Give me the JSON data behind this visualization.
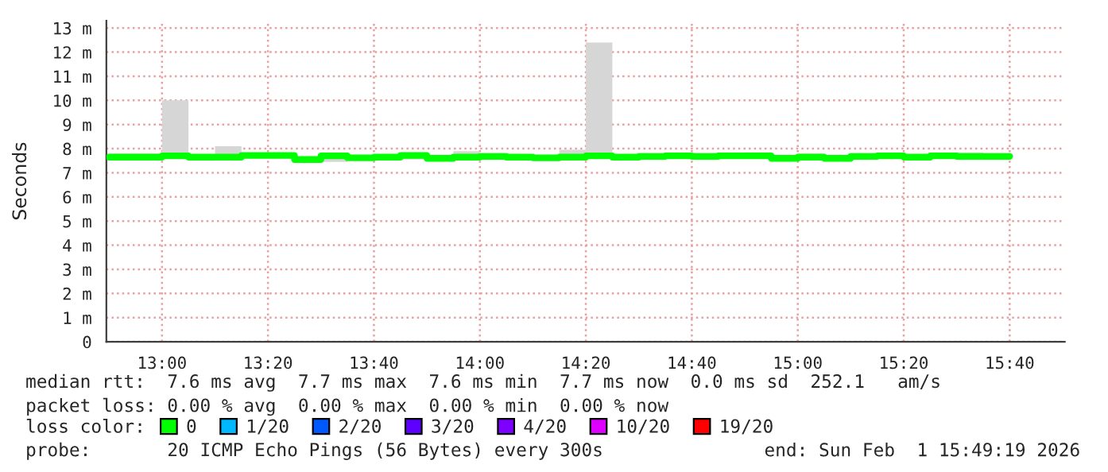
{
  "chart_data": {
    "type": "step",
    "ylabel": "Seconds",
    "x": [
      12.8333,
      12.9167,
      13,
      13.0833,
      13.1667,
      13.25,
      13.3333,
      13.4167,
      13.5,
      13.5833,
      13.6667,
      13.75,
      13.8333,
      13.9167,
      14,
      14.0833,
      14.1667,
      14.25,
      14.3333,
      14.4167,
      14.5,
      14.5833,
      14.6667,
      14.75,
      14.8333,
      14.9167,
      15,
      15.0833,
      15.1667,
      15.25,
      15.3333,
      15.4167,
      15.5,
      15.5833,
      15.6667
    ],
    "series": [
      {
        "name": "0",
        "color": "#00ff00",
        "values": [
          7.65,
          7.65,
          7.7,
          7.65,
          7.65,
          7.72,
          7.72,
          7.55,
          7.7,
          7.62,
          7.65,
          7.72,
          7.6,
          7.65,
          7.68,
          7.65,
          7.62,
          7.65,
          7.7,
          7.65,
          7.68,
          7.7,
          7.68,
          7.7,
          7.7,
          7.6,
          7.65,
          7.6,
          7.68,
          7.7,
          7.65,
          7.7,
          7.68,
          7.68,
          7.68
        ],
        "lower": [
          7.6,
          7.6,
          7.6,
          7.5,
          7.6,
          7.6,
          7.6,
          7.5,
          7.45,
          7.55,
          7.55,
          7.55,
          7.5,
          7.55,
          7.6,
          7.55,
          7.5,
          7.6,
          7.6,
          7.6,
          7.65,
          7.6,
          7.6,
          7.65,
          7.6,
          7.55,
          7.55,
          7.55,
          7.6,
          7.65,
          7.55,
          7.7,
          7.6,
          7.6,
          7.6
        ],
        "upper": [
          7.8,
          7.8,
          10.0,
          7.7,
          8.1,
          7.8,
          7.75,
          7.6,
          7.75,
          7.7,
          7.75,
          7.85,
          7.7,
          7.9,
          7.75,
          7.7,
          7.7,
          7.95,
          12.4,
          7.7,
          7.7,
          7.75,
          7.75,
          7.75,
          7.85,
          7.7,
          7.8,
          7.7,
          7.7,
          7.75,
          7.75,
          7.75,
          7.85,
          7.75,
          7.75
        ]
      },
      {
        "name": "1/20",
        "color": "#00b8ff",
        "values": [
          null,
          null,
          null,
          null,
          null,
          null,
          null,
          null,
          null,
          null,
          null,
          null,
          null,
          null,
          null,
          null,
          null,
          null,
          null,
          null,
          null,
          null,
          null,
          null,
          null,
          null,
          null,
          null,
          null,
          null,
          null,
          null,
          null,
          null,
          null
        ]
      },
      {
        "name": "2/20",
        "color": "#0059ff",
        "values": [
          null,
          null,
          null,
          null,
          null,
          null,
          null,
          null,
          null,
          null,
          null,
          null,
          null,
          null,
          null,
          null,
          null,
          null,
          null,
          null,
          null,
          null,
          null,
          null,
          null,
          null,
          null,
          null,
          null,
          null,
          null,
          null,
          null,
          null,
          null
        ]
      },
      {
        "name": "3/20",
        "color": "#5e00ff",
        "values": [
          null,
          null,
          null,
          null,
          null,
          null,
          null,
          null,
          null,
          null,
          null,
          null,
          null,
          null,
          null,
          null,
          null,
          null,
          null,
          null,
          null,
          null,
          null,
          null,
          null,
          null,
          null,
          null,
          null,
          null,
          null,
          null,
          null,
          null,
          null
        ]
      },
      {
        "name": "4/20",
        "color": "#7e00ff",
        "values": [
          null,
          null,
          null,
          null,
          null,
          null,
          null,
          null,
          null,
          null,
          null,
          null,
          null,
          null,
          null,
          null,
          null,
          null,
          null,
          null,
          null,
          null,
          null,
          null,
          null,
          null,
          null,
          null,
          null,
          null,
          null,
          null,
          null,
          null,
          null
        ]
      },
      {
        "name": "10/20",
        "color": "#dd00ff",
        "values": [
          null,
          null,
          null,
          null,
          null,
          null,
          null,
          null,
          null,
          null,
          null,
          null,
          null,
          null,
          null,
          null,
          null,
          null,
          null,
          null,
          null,
          null,
          null,
          null,
          null,
          null,
          null,
          null,
          null,
          null,
          null,
          null,
          null,
          null,
          null
        ]
      },
      {
        "name": "19/20",
        "color": "#ff0000",
        "values": [
          null,
          null,
          null,
          null,
          null,
          null,
          null,
          null,
          null,
          null,
          null,
          null,
          null,
          null,
          null,
          null,
          null,
          null,
          null,
          null,
          null,
          null,
          null,
          null,
          null,
          null,
          null,
          null,
          null,
          null,
          null,
          null,
          null,
          null,
          null
        ]
      }
    ],
    "xlim": [
      12.825,
      15.84
    ],
    "xticks": [
      {
        "value": 13,
        "label": "13:00"
      },
      {
        "value": 13.3333,
        "label": "13:20"
      },
      {
        "value": 13.6667,
        "label": "13:40"
      },
      {
        "value": 14,
        "label": "14:00"
      },
      {
        "value": 14.3333,
        "label": "14:20"
      },
      {
        "value": 14.6667,
        "label": "14:40"
      },
      {
        "value": 15,
        "label": "15:00"
      },
      {
        "value": 15.3333,
        "label": "15:20"
      },
      {
        "value": 15.6667,
        "label": "15:40"
      }
    ],
    "ylim": [
      0,
      13.3
    ],
    "yticks": [
      0,
      {
        "value": 1,
        "label": "1 m"
      },
      {
        "value": 2,
        "label": "2 m"
      },
      {
        "value": 3,
        "label": "3 m"
      },
      {
        "value": 4,
        "label": "4 m"
      },
      {
        "value": 5,
        "label": "5 m"
      },
      {
        "value": 6,
        "label": "6 m"
      },
      {
        "value": 7,
        "label": "7 m"
      },
      {
        "value": 8,
        "label": "8 m"
      },
      {
        "value": 9,
        "label": "9 m"
      },
      {
        "value": 10,
        "label": "10 m"
      },
      {
        "value": 11,
        "label": "11 m"
      },
      {
        "value": 12,
        "label": "12 m"
      },
      {
        "value": 13,
        "label": "13 m"
      }
    ],
    "grid": true,
    "legend": "bottom",
    "legend_title": "loss color:",
    "annotations": [
      "median rtt:  7.6 ms avg  7.7 ms max  7.6 ms min  7.7 ms now  0.0 ms sd  252.1   am/s",
      "packet loss: 0.00 % avg  0.00 % max  0.00 % min  0.00 % now",
      "probe:       20 ICMP Echo Pings (56 Bytes) every 300s",
      "end: Sun Feb  1 15:49:19 2026"
    ]
  }
}
